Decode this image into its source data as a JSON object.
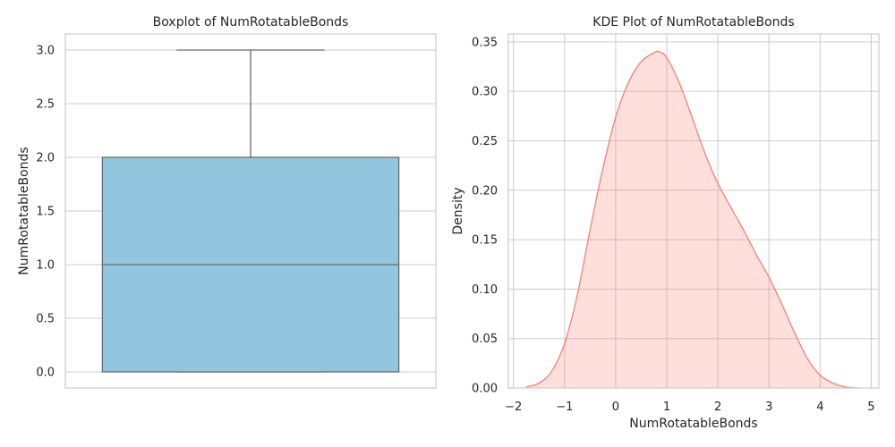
{
  "chart_data": [
    {
      "type": "box",
      "title": "Boxplot of NumRotatableBonds",
      "xlabel": "",
      "ylabel": "NumRotatableBonds",
      "ylim": [
        -0.15,
        3.15
      ],
      "yticks": [
        0.0,
        0.5,
        1.0,
        1.5,
        2.0,
        2.5,
        3.0
      ],
      "ytick_labels": [
        "0.0",
        "0.5",
        "1.0",
        "1.5",
        "2.0",
        "2.5",
        "3.0"
      ],
      "stats": {
        "min": 0,
        "q1": 0,
        "median": 1,
        "q3": 2,
        "max": 3
      },
      "box_color": "#92c6df",
      "line_color": "#6b6b6b",
      "grid": true
    },
    {
      "type": "area",
      "title": "KDE Plot of NumRotatableBonds",
      "xlabel": "NumRotatableBonds",
      "ylabel": "Density",
      "xlim": [
        -2.1,
        5.15
      ],
      "ylim": [
        0,
        0.358
      ],
      "xticks": [
        -2,
        -1,
        0,
        1,
        2,
        3,
        4,
        5
      ],
      "xtick_labels": [
        "−2",
        "−1",
        "0",
        "1",
        "2",
        "3",
        "4",
        "5"
      ],
      "yticks": [
        0.0,
        0.05,
        0.1,
        0.15,
        0.2,
        0.25,
        0.3,
        0.35
      ],
      "ytick_labels": [
        "0.00",
        "0.05",
        "0.10",
        "0.15",
        "0.20",
        "0.25",
        "0.30",
        "0.35"
      ],
      "x": [
        -1.75,
        -1.5,
        -1.25,
        -1.0,
        -0.75,
        -0.5,
        -0.25,
        0.0,
        0.25,
        0.5,
        0.75,
        0.85,
        1.0,
        1.25,
        1.5,
        1.75,
        2.0,
        2.25,
        2.5,
        2.75,
        3.0,
        3.25,
        3.5,
        3.75,
        4.0,
        4.25,
        4.5,
        4.75
      ],
      "y": [
        0.001,
        0.005,
        0.017,
        0.045,
        0.094,
        0.16,
        0.222,
        0.274,
        0.309,
        0.33,
        0.339,
        0.34,
        0.334,
        0.308,
        0.273,
        0.237,
        0.207,
        0.183,
        0.16,
        0.135,
        0.112,
        0.085,
        0.056,
        0.03,
        0.013,
        0.005,
        0.001,
        0.0
      ],
      "line_color": "#fa8072",
      "fill_color": "#fa8072",
      "fill_alpha": 0.25,
      "grid": true
    }
  ]
}
